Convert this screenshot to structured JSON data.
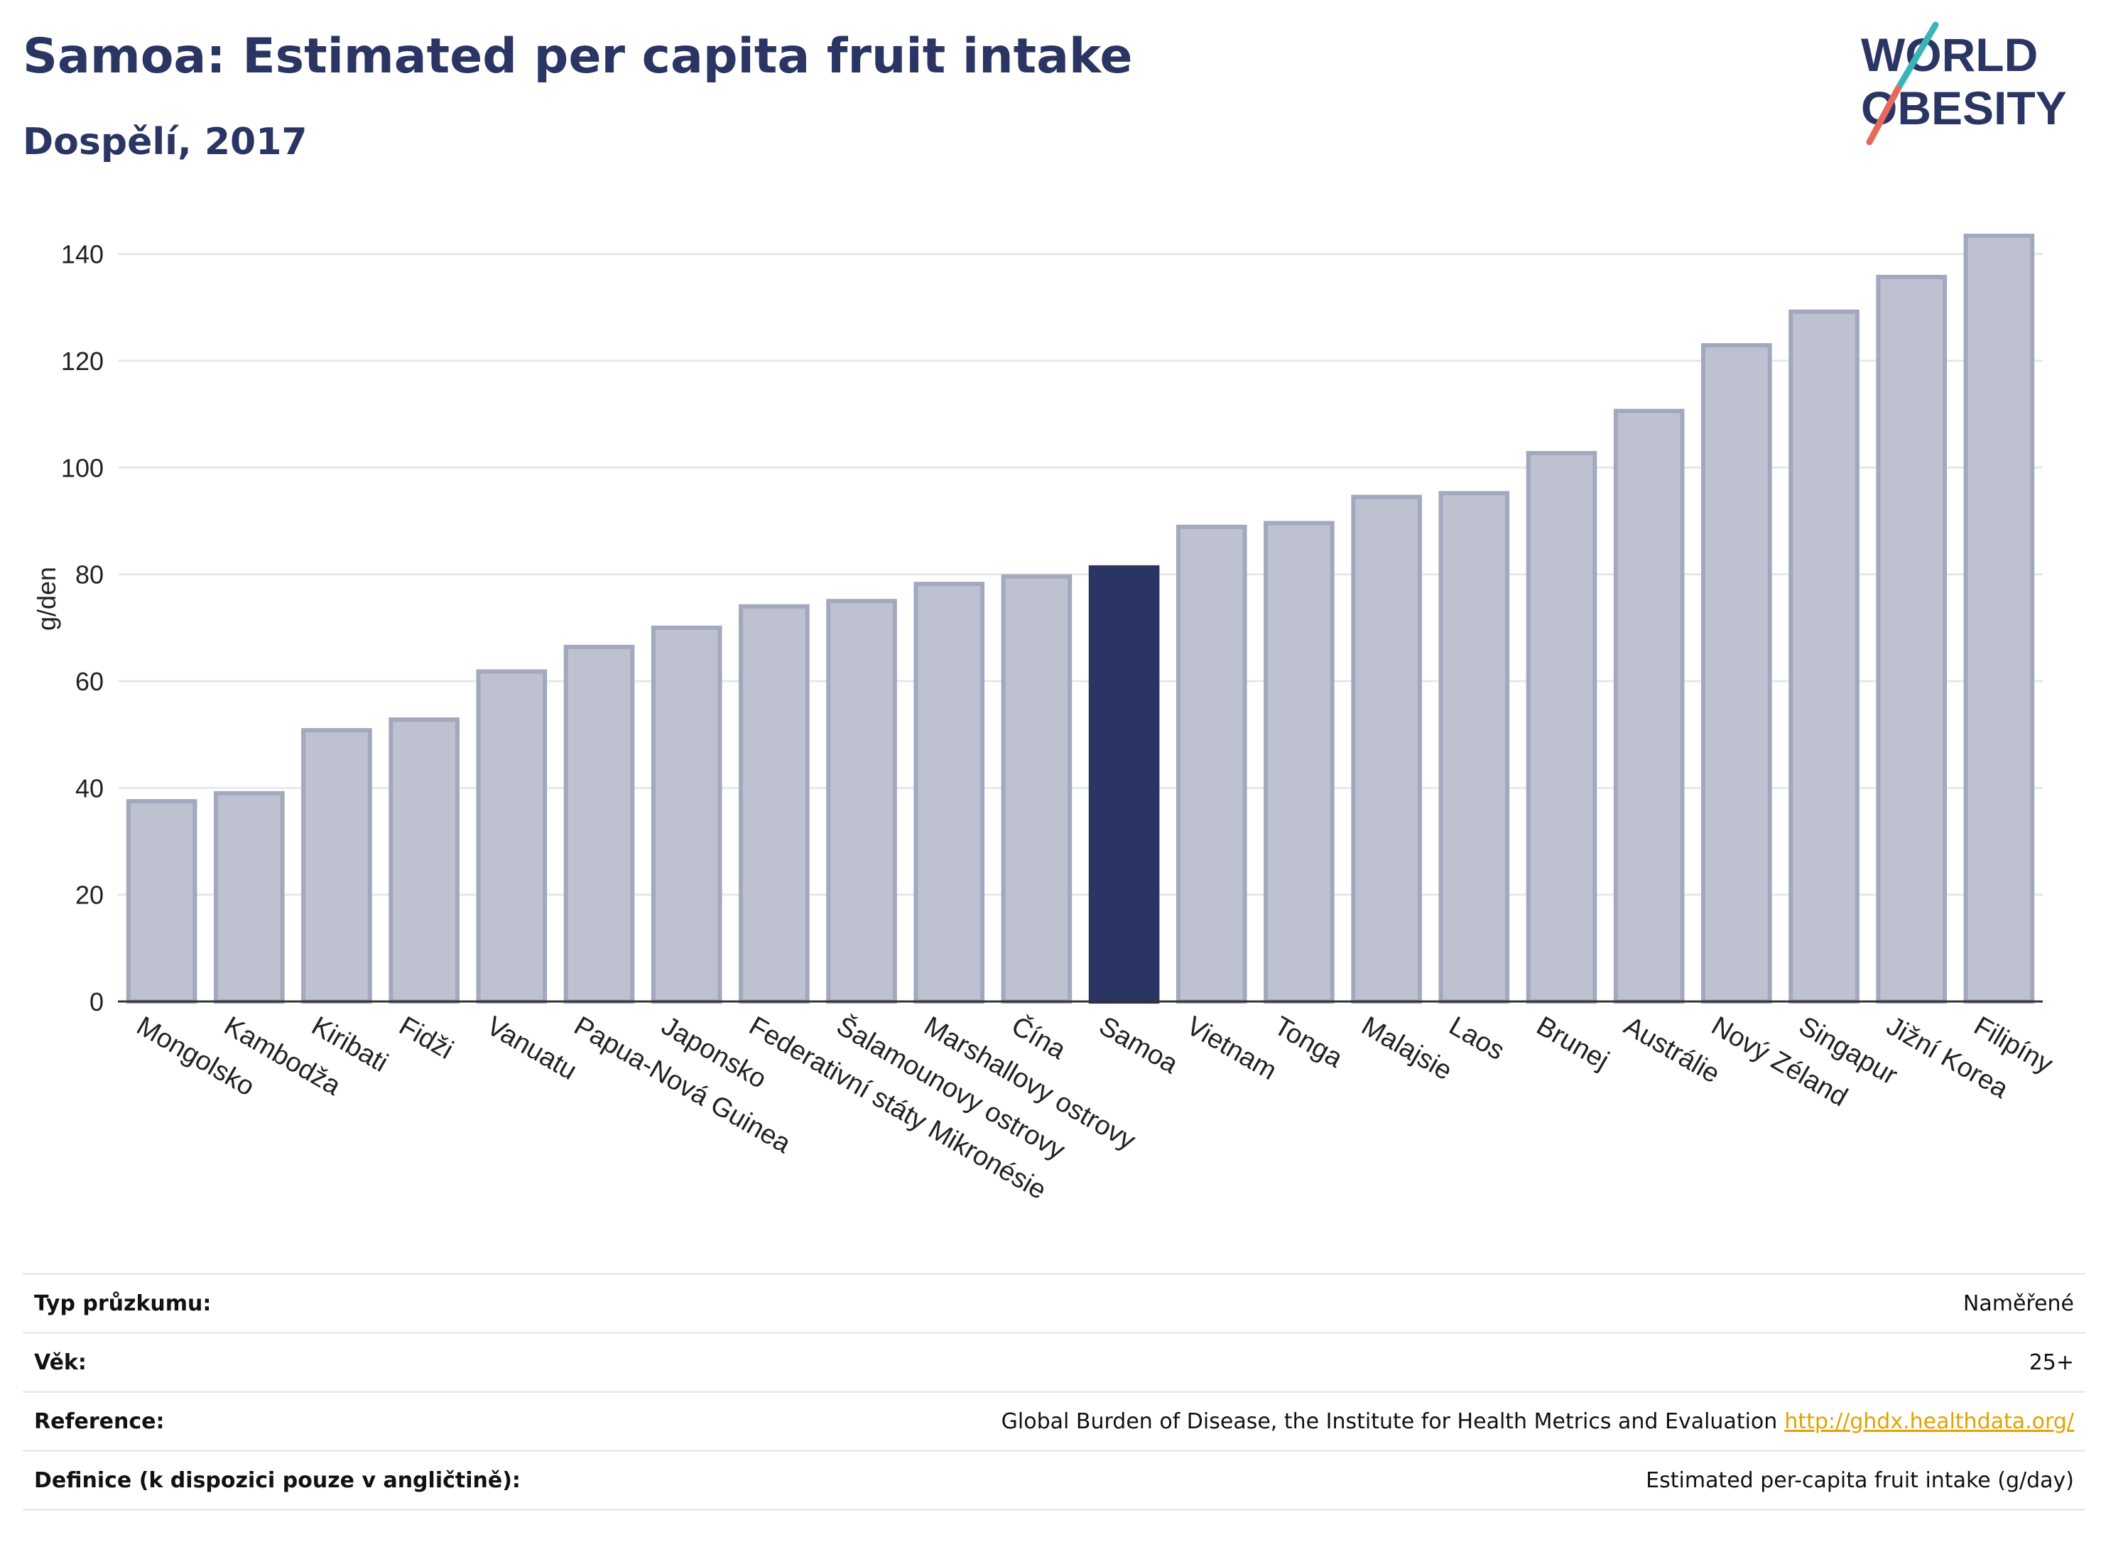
{
  "header": {
    "title": "Samoa: Estimated per capita fruit intake",
    "subtitle": "Dospělí, 2017"
  },
  "logo": {
    "line1": "WORLD",
    "line2": "OBESITY",
    "colors": {
      "text": "#2a3563",
      "slash_teal": "#3ab4b9",
      "slash_red": "#e56a5c"
    }
  },
  "chart_data": {
    "type": "bar",
    "ylabel": "g/den",
    "xlabel": "",
    "ylim": [
      0,
      145
    ],
    "yticks": [
      0,
      20,
      40,
      60,
      80,
      100,
      120,
      140
    ],
    "grid": true,
    "highlight": "Samoa",
    "colors": {
      "bar": "#bec2d0",
      "bar_edge": "#a2a8bd",
      "highlight": "#2a3563",
      "grid": "#e6e8ee",
      "axis": "#333333"
    },
    "categories": [
      "Mongolsko",
      "Kambodža",
      "Kiribati",
      "Fidži",
      "Vanuatu",
      "Papua-Nová Guinea",
      "Japonsko",
      "Federativní státy Mikronésie",
      "Šalamounovy ostrovy",
      "Marshallovy ostrovy",
      "Čína",
      "Samoa",
      "Vietnam",
      "Tonga",
      "Malajsie",
      "Laos",
      "Brunej",
      "Austrálie",
      "Nový Zéland",
      "Singapur",
      "Jižní Korea",
      "Filipíny"
    ],
    "values": [
      37.5,
      39,
      50.8,
      52.8,
      61.8,
      66.4,
      70,
      74,
      75,
      78.2,
      79.6,
      81.3,
      88.9,
      89.6,
      94.5,
      95.2,
      102.7,
      110.6,
      122.9,
      129.2,
      135.7,
      143.4
    ]
  },
  "meta": {
    "rows": [
      {
        "label": "Typ průzkumu:",
        "value": "Naměřené"
      },
      {
        "label": "Věk:",
        "value": "25+"
      },
      {
        "label": "Reference:",
        "value": "Global Burden of Disease, the Institute for Health Metrics and Evaluation",
        "link": "http://ghdx.healthdata.org/"
      },
      {
        "label": "Definice (k dispozici pouze v angličtině):",
        "value": "Estimated per-capita fruit intake (g/day)"
      }
    ]
  }
}
